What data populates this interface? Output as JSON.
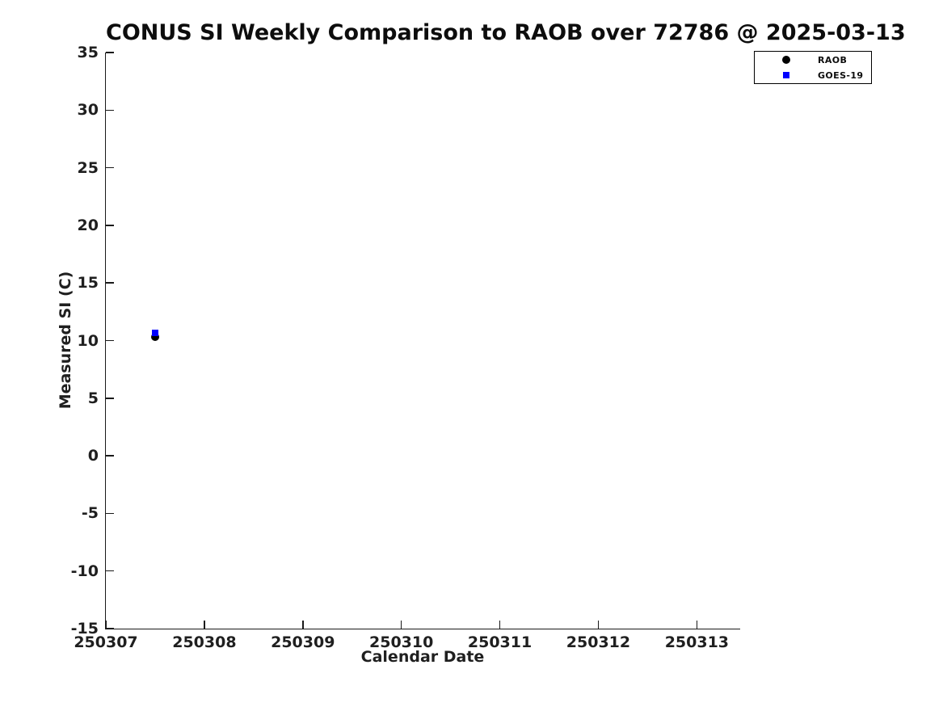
{
  "chart_data": {
    "type": "scatter",
    "title": "CONUS SI Weekly Comparison to RAOB over 72786 @ 2025-03-13",
    "xlabel": "Calendar Date",
    "ylabel": "Measured SI (C)",
    "xlim": [
      250307,
      250313.44
    ],
    "ylim": [
      -15,
      35
    ],
    "x_ticks": [
      250307,
      250308,
      250309,
      250310,
      250311,
      250312,
      250313
    ],
    "y_ticks": [
      35,
      30,
      25,
      20,
      15,
      10,
      5,
      0,
      -5,
      -10,
      -15
    ],
    "grid": false,
    "legend_position": "top-right",
    "series": [
      {
        "name": "RAOB",
        "marker": "circle",
        "color": "#000000",
        "marker_size_px": 10,
        "points": [
          {
            "x": 250307.5,
            "y": 10.3
          }
        ]
      },
      {
        "name": "GOES-19",
        "marker": "square",
        "color": "#0000ff",
        "marker_size_px": 8,
        "points": [
          {
            "x": 250307.5,
            "y": 10.7
          }
        ]
      }
    ]
  }
}
